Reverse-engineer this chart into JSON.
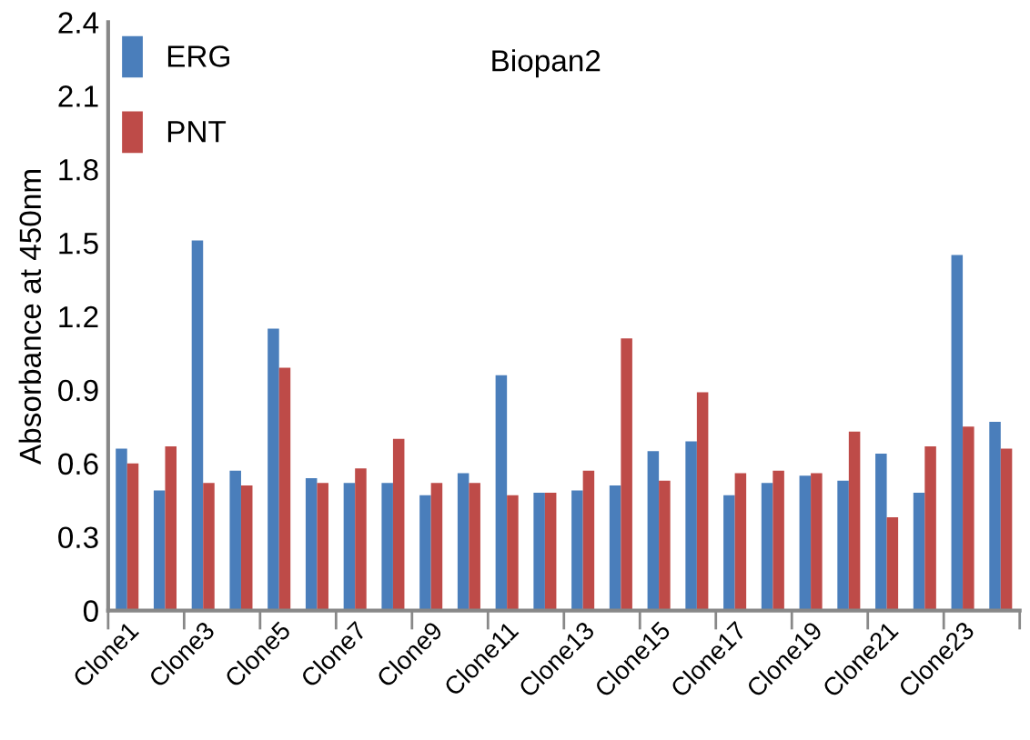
{
  "chart_data": {
    "type": "bar",
    "title": "Biopan2",
    "ylabel": "Absorbance at 450nm",
    "categories": [
      "Clone1",
      null,
      "Clone3",
      null,
      "Clone5",
      null,
      "Clone7",
      null,
      "Clone9",
      null,
      "Clone11",
      null,
      "Clone13",
      null,
      "Clone15",
      null,
      "Clone17",
      null,
      "Clone19",
      null,
      "Clone21",
      null,
      "Clone23",
      null
    ],
    "series": [
      {
        "name": "ERG",
        "color": "#4a7ebb",
        "values": [
          0.66,
          0.49,
          1.51,
          0.57,
          1.15,
          0.54,
          0.52,
          0.52,
          0.47,
          0.56,
          0.96,
          0.48,
          0.49,
          0.51,
          0.65,
          0.69,
          0.47,
          0.52,
          0.55,
          0.53,
          0.64,
          0.48,
          1.45,
          0.77
        ]
      },
      {
        "name": "PNT",
        "color": "#be4b48",
        "values": [
          0.6,
          0.67,
          0.52,
          0.51,
          0.99,
          0.52,
          0.58,
          0.7,
          0.52,
          0.52,
          0.47,
          0.48,
          0.57,
          1.11,
          0.53,
          0.89,
          0.56,
          0.57,
          0.56,
          0.73,
          0.38,
          0.67,
          0.75,
          0.66
        ]
      }
    ],
    "ylim": [
      0,
      2.4
    ],
    "yticks": [
      0,
      0.3,
      0.6,
      0.9,
      1.2,
      1.5,
      1.8,
      2.1,
      2.4
    ],
    "grid": false,
    "legend": "top left"
  }
}
